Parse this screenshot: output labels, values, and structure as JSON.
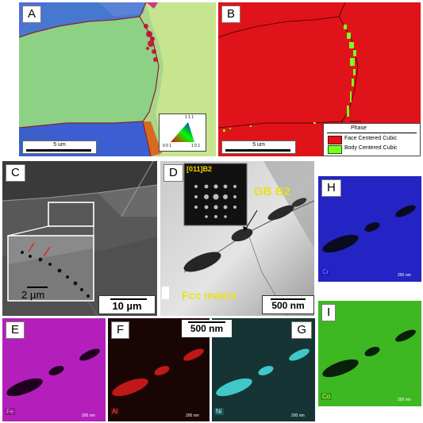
{
  "panels": {
    "a": {
      "label": "A",
      "scale_bar": "5 um",
      "ipf_key": {
        "top": "1 1 1",
        "left": "0 0 1",
        "right": "1 0 1"
      }
    },
    "b": {
      "label": "B",
      "scale_bar": "5 um",
      "legend": {
        "title": "Phase",
        "items": [
          {
            "label": "Face Centered Cubic",
            "color": "#e0131a"
          },
          {
            "label": "Body Centered Cubic",
            "color": "#7cff1f"
          }
        ]
      }
    },
    "c": {
      "label": "C",
      "inset_scale": "2 µm",
      "scale_bar": "10 µm"
    },
    "d": {
      "label": "D",
      "diffraction_label": "[011]B2",
      "annotation": "GB B2",
      "matrix_label": "Fcc matrix",
      "scale_bar": "500 nm"
    },
    "h": {
      "label": "H",
      "element": "Cr",
      "tiny_scale": "200 nm",
      "color": "#2020d0"
    },
    "e": {
      "label": "E",
      "element": "Fe",
      "tiny_scale": "200 nm",
      "color": "#c020c8"
    },
    "f": {
      "label": "F",
      "element": "Al",
      "tiny_scale": "200 nm",
      "color": "#d01818"
    },
    "g": {
      "label": "G",
      "element": "Ni",
      "tiny_scale": "200 nm",
      "color": "#30c8c8"
    },
    "i": {
      "label": "I",
      "element": "Co",
      "tiny_scale": "200 nm",
      "color": "#40c020"
    },
    "shared_scale_bar": "500 nm"
  }
}
